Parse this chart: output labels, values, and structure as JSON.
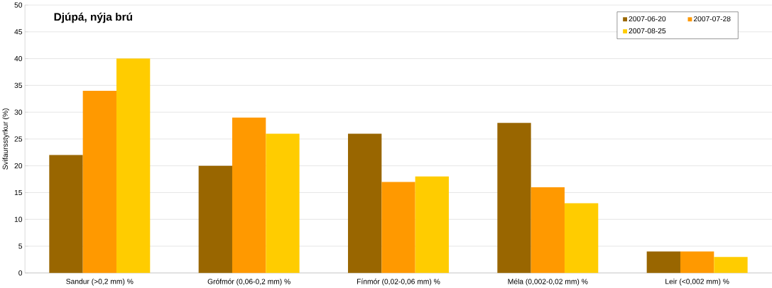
{
  "chart_data": {
    "type": "bar",
    "title": "Djúpá, nýja brú",
    "ylabel": "Svifaursstyrkur (%)",
    "categories": [
      "Sandur (>0,2 mm) %",
      "Grófmór (0,06-0,2 mm) %",
      "Fínmór (0,02-0,06 mm) %",
      "Méla (0,002-0,02 mm) %",
      "Leir (<0,002 mm) %"
    ],
    "series": [
      {
        "name": "2007-06-20",
        "color": "#996600",
        "values": [
          22,
          20,
          26,
          28,
          4
        ]
      },
      {
        "name": "2007-07-28",
        "color": "#ff9900",
        "values": [
          34,
          29,
          17,
          16,
          4
        ]
      },
      {
        "name": "2007-08-25",
        "color": "#ffcc00",
        "values": [
          40,
          26,
          18,
          13,
          3
        ]
      }
    ],
    "ylim": [
      0,
      50
    ],
    "yticks": [
      0,
      5,
      10,
      15,
      20,
      25,
      30,
      35,
      40,
      45,
      50
    ],
    "grid": "y",
    "legend": "top right"
  }
}
